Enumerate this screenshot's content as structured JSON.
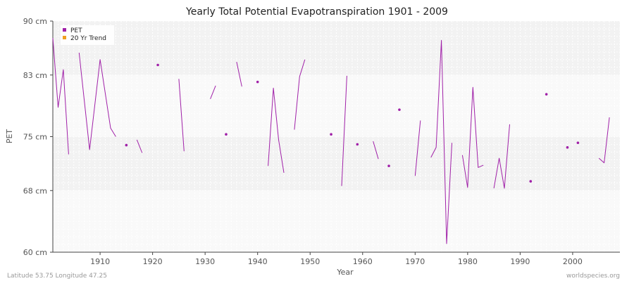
{
  "chart_data": {
    "type": "line",
    "title": "Yearly Total Potential Evapotranspiration 1901 - 2009",
    "xlabel": "Year",
    "ylabel": "PET",
    "xlim": [
      1901,
      2009
    ],
    "ylim": [
      60,
      90
    ],
    "x_ticks": [
      1910,
      1920,
      1930,
      1940,
      1950,
      1960,
      1970,
      1980,
      1990,
      2000
    ],
    "y_ticks": [
      {
        "value": 60,
        "label": "60 cm"
      },
      {
        "value": 68,
        "label": "68 cm"
      },
      {
        "value": 75,
        "label": "75 cm"
      },
      {
        "value": 83,
        "label": "83 cm"
      },
      {
        "value": 90,
        "label": "90 cm"
      }
    ],
    "grid": true,
    "legend_position": "top-left",
    "colors": {
      "pet": "#a020a8",
      "trend": "#f0a020",
      "band_light": "#f9f9f9",
      "band_dark": "#f2f2f2"
    },
    "series": [
      {
        "name": "PET",
        "x": [
          1901,
          1902,
          1903,
          1904,
          1906,
          1908,
          1910,
          1912,
          1913,
          1915,
          1917,
          1918,
          1921,
          1925,
          1926,
          1931,
          1932,
          1934,
          1936,
          1937,
          1940,
          1942,
          1943,
          1944,
          1945,
          1947,
          1948,
          1949,
          1954,
          1956,
          1957,
          1959,
          1962,
          1963,
          1965,
          1967,
          1970,
          1971,
          1973,
          1974,
          1975,
          1976,
          1977,
          1979,
          1980,
          1981,
          1982,
          1983,
          1985,
          1986,
          1987,
          1988,
          1992,
          1995,
          1999,
          2001,
          2005,
          2006,
          2007
        ],
        "values": [
          87.8,
          78.8,
          83.7,
          72.7,
          85.9,
          73.3,
          85.0,
          76.1,
          75.0,
          73.9,
          74.6,
          72.9,
          84.3,
          82.5,
          73.1,
          79.9,
          81.6,
          75.3,
          84.7,
          81.5,
          82.1,
          71.2,
          81.3,
          74.6,
          70.3,
          75.9,
          82.8,
          85.0,
          75.3,
          68.6,
          82.9,
          74.0,
          74.4,
          72.1,
          71.2,
          78.5,
          69.9,
          77.1,
          72.3,
          73.6,
          87.5,
          61.1,
          74.2,
          72.6,
          68.4,
          81.4,
          71.0,
          71.3,
          68.3,
          72.2,
          68.3,
          76.6,
          69.2,
          80.5,
          73.6,
          74.2,
          72.2,
          71.6,
          77.5
        ],
        "segments": [
          [
            [
              1901,
              87.8
            ],
            [
              1902,
              78.8
            ],
            [
              1903,
              83.7
            ],
            [
              1904,
              72.7
            ]
          ],
          [
            [
              1906,
              85.9
            ],
            [
              1908,
              73.3
            ],
            [
              1910,
              85.0
            ],
            [
              1912,
              76.1
            ],
            [
              1913,
              75.0
            ]
          ],
          [
            [
              1915,
              73.9
            ]
          ],
          [
            [
              1917,
              74.6
            ],
            [
              1918,
              72.9
            ]
          ],
          [
            [
              1921,
              84.3
            ]
          ],
          [
            [
              1925,
              82.5
            ],
            [
              1926,
              73.1
            ]
          ],
          [
            [
              1931,
              79.9
            ],
            [
              1932,
              81.6
            ]
          ],
          [
            [
              1934,
              75.3
            ]
          ],
          [
            [
              1936,
              84.7
            ],
            [
              1937,
              81.5
            ]
          ],
          [
            [
              1940,
              82.1
            ]
          ],
          [
            [
              1942,
              71.2
            ],
            [
              1943,
              81.3
            ],
            [
              1944,
              74.6
            ],
            [
              1945,
              70.3
            ]
          ],
          [
            [
              1947,
              75.9
            ],
            [
              1948,
              82.8
            ],
            [
              1949,
              85.0
            ]
          ],
          [
            [
              1954,
              75.3
            ]
          ],
          [
            [
              1956,
              68.6
            ],
            [
              1957,
              82.9
            ]
          ],
          [
            [
              1959,
              74.0
            ]
          ],
          [
            [
              1962,
              74.4
            ],
            [
              1963,
              72.1
            ]
          ],
          [
            [
              1965,
              71.2
            ]
          ],
          [
            [
              1967,
              78.5
            ]
          ],
          [
            [
              1970,
              69.9
            ],
            [
              1971,
              77.1
            ]
          ],
          [
            [
              1973,
              72.3
            ],
            [
              1974,
              73.6
            ],
            [
              1975,
              87.5
            ],
            [
              1976,
              61.1
            ],
            [
              1977,
              74.2
            ]
          ],
          [
            [
              1979,
              72.6
            ],
            [
              1980,
              68.4
            ],
            [
              1981,
              81.4
            ],
            [
              1982,
              71.0
            ],
            [
              1983,
              71.3
            ]
          ],
          [
            [
              1985,
              68.3
            ],
            [
              1986,
              72.2
            ],
            [
              1987,
              68.3
            ],
            [
              1988,
              76.6
            ]
          ],
          [
            [
              1992,
              69.2
            ]
          ],
          [
            [
              1995,
              80.5
            ]
          ],
          [
            [
              1999,
              73.6
            ]
          ],
          [
            [
              2001,
              74.2
            ]
          ],
          [
            [
              2005,
              72.2
            ],
            [
              2006,
              71.6
            ],
            [
              2007,
              77.5
            ]
          ]
        ]
      },
      {
        "name": "20 Yr Trend",
        "values": []
      }
    ]
  },
  "footer": {
    "location": "Latitude 53.75 Longitude 47.25",
    "source": "worldspecies.org"
  }
}
